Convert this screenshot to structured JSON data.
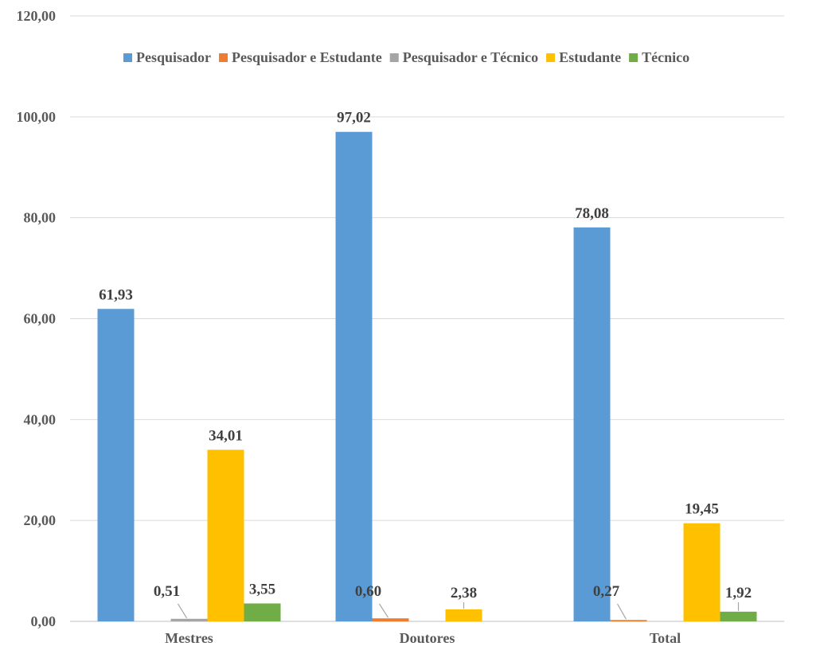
{
  "chart_data": {
    "type": "bar",
    "title": "",
    "xlabel": "",
    "ylabel": "",
    "categories": [
      "Mestres",
      "Doutores",
      "Total"
    ],
    "ylim": [
      0,
      120
    ],
    "yticks": [
      "0,00",
      "20,00",
      "40,00",
      "60,00",
      "80,00",
      "100,00",
      "120,00"
    ],
    "grid": true,
    "legend_position": "top",
    "series": [
      {
        "name": "Pesquisador",
        "color": "#5B9BD5",
        "values": [
          61.93,
          97.02,
          78.08
        ],
        "labels": [
          "61,93",
          "97,02",
          "78,08"
        ]
      },
      {
        "name": "Pesquisador e Estudante",
        "color": "#ED7D31",
        "values": [
          0,
          0.6,
          0.27
        ],
        "labels": [
          "",
          "0,60",
          "0,27"
        ]
      },
      {
        "name": "Pesquisador e Técnico",
        "color": "#A5A5A5",
        "values": [
          0.51,
          0,
          0
        ],
        "labels": [
          "0,51",
          "",
          ""
        ]
      },
      {
        "name": "Estudante",
        "color": "#FFC000",
        "values": [
          34.01,
          2.38,
          19.45
        ],
        "labels": [
          "34,01",
          "2,38",
          "19,45"
        ]
      },
      {
        "name": "Técnico",
        "color": "#70AD47",
        "values": [
          3.55,
          0,
          1.92
        ],
        "labels": [
          "3,55",
          "",
          "1,92"
        ]
      }
    ]
  }
}
